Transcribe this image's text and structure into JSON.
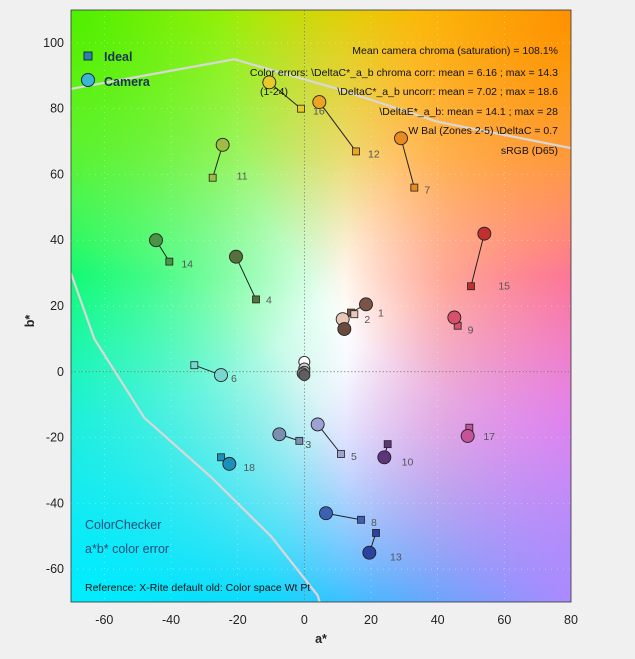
{
  "chart_data": {
    "type": "scatter",
    "xlabel": "a*",
    "ylabel": "b*",
    "xlim": [
      -70,
      80
    ],
    "ylim": [
      -70,
      110
    ],
    "xticks": [
      -60,
      -40,
      -20,
      0,
      20,
      40,
      60,
      80
    ],
    "yticks": [
      -60,
      -40,
      -20,
      0,
      20,
      40,
      60,
      80,
      100
    ],
    "grid": true,
    "legend": {
      "position": "top-left",
      "items": [
        {
          "label": "Ideal",
          "marker": "square",
          "color": "#2a7fb3"
        },
        {
          "label": "Camera",
          "marker": "circle",
          "color": "#3ab7d8"
        }
      ]
    },
    "annotations": [
      "Mean camera chroma (saturation) = 108.1%",
      "Color errors: \\DeltaC*_a_b chroma corr:  mean = 6.16 ;  max = 14.3",
      "(1-24)",
      "\\DeltaC*_a_b uncorr:  mean = 7.02 ;  max = 18.6",
      "\\DeltaE*_a_b:  mean = 14.1 ;  max = 28",
      "W Bal (Zones 2-5) \\DeltaC = 0.7",
      "sRGB (D65)"
    ],
    "title_lines": [
      "ColorChecker",
      "a*b* color error"
    ],
    "reference": "Reference: X-Rite default old: Color space Wt Pt",
    "patches": [
      {
        "id": "1",
        "ideal": [
          14,
          18
        ],
        "camera": [
          18.5,
          20.5
        ],
        "color": "#7a5446"
      },
      {
        "id": "2",
        "ideal": [
          15,
          17.5
        ],
        "camera": [
          11.5,
          16
        ],
        "color": "#e9c6b8"
      },
      {
        "id": "2b",
        "ideal": [
          12,
          13
        ],
        "camera": [
          12,
          13
        ],
        "color": "#6b4b3f"
      },
      {
        "id": "3",
        "ideal": [
          -1.5,
          -21
        ],
        "camera": [
          -7.5,
          -19
        ],
        "color": "#7b8fb3"
      },
      {
        "id": "4",
        "ideal": [
          -14.5,
          22
        ],
        "camera": [
          -20.5,
          35
        ],
        "color": "#56713d"
      },
      {
        "id": "5",
        "ideal": [
          11,
          -25
        ],
        "camera": [
          4,
          -16
        ],
        "color": "#9da2d3"
      },
      {
        "id": "6",
        "ideal": [
          -33,
          2
        ],
        "camera": [
          -25,
          -1
        ],
        "color": "#78d8cf"
      },
      {
        "id": "7",
        "ideal": [
          33,
          56
        ],
        "camera": [
          29,
          71
        ],
        "color": "#e98a1f"
      },
      {
        "id": "8",
        "ideal": [
          17,
          -45
        ],
        "camera": [
          6.5,
          -43
        ],
        "color": "#3c61b3"
      },
      {
        "id": "9",
        "ideal": [
          46,
          14
        ],
        "camera": [
          45,
          16.5
        ],
        "color": "#d9506a"
      },
      {
        "id": "10",
        "ideal": [
          25,
          -22
        ],
        "camera": [
          24,
          -26
        ],
        "color": "#5e357a"
      },
      {
        "id": "11",
        "ideal": [
          -27.5,
          59
        ],
        "camera": [
          -24.5,
          69
        ],
        "color": "#9fbc42"
      },
      {
        "id": "12",
        "ideal": [
          15.5,
          67
        ],
        "camera": [
          4.5,
          82
        ],
        "color": "#efa421"
      },
      {
        "id": "13",
        "ideal": [
          21.5,
          -49
        ],
        "camera": [
          19.5,
          -55
        ],
        "color": "#2b42a0"
      },
      {
        "id": "14",
        "ideal": [
          -40.5,
          33.5
        ],
        "camera": [
          -44.5,
          40
        ],
        "color": "#4a9448"
      },
      {
        "id": "15",
        "ideal": [
          50,
          26
        ],
        "camera": [
          54,
          42
        ],
        "color": "#c0302f"
      },
      {
        "id": "16",
        "ideal": [
          -1,
          80
        ],
        "camera": [
          -10.5,
          88
        ],
        "color": "#e8c928"
      },
      {
        "id": "17",
        "ideal": [
          49.5,
          -17
        ],
        "camera": [
          49,
          -19.5
        ],
        "color": "#c55397"
      },
      {
        "id": "18",
        "ideal": [
          -25,
          -26
        ],
        "camera": [
          -22.5,
          -28
        ],
        "color": "#1c8fbd"
      }
    ],
    "neutrals": [
      [
        0,
        3
      ],
      [
        0,
        1
      ],
      [
        0,
        0
      ],
      [
        -0.5,
        -0.5
      ],
      [
        0,
        -1
      ]
    ]
  }
}
